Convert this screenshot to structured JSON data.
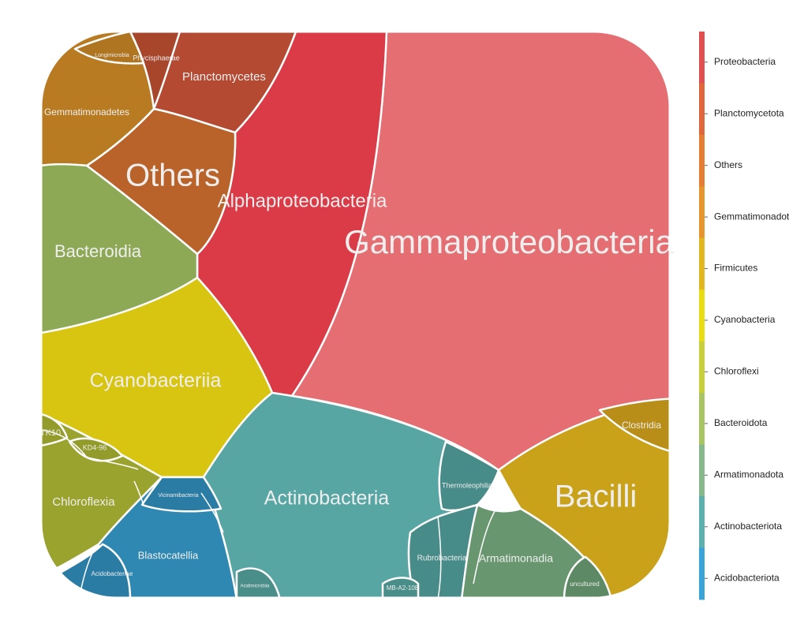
{
  "chart_data": {
    "type": "voronoi treemap",
    "legend": {
      "placement": "right",
      "entries": [
        {
          "label": "Proteobacteria",
          "color": "#e05050"
        },
        {
          "label": "Planctomycetota",
          "color": "#e0663c"
        },
        {
          "label": "Others",
          "color": "#e57e33"
        },
        {
          "label": "Gemmatimonadota",
          "color": "#e6962c"
        },
        {
          "label": "Firmicutes",
          "color": "#e3b81e"
        },
        {
          "label": "Cyanobacteria",
          "color": "#e8dc12"
        },
        {
          "label": "Chloroflexi",
          "color": "#c8cf3a"
        },
        {
          "label": "Bacteroidota",
          "color": "#a9c463"
        },
        {
          "label": "Armatimonadota",
          "color": "#86b88b"
        },
        {
          "label": "Actinobacteriota",
          "color": "#5cb0ad"
        },
        {
          "label": "Acidobacteriota",
          "color": "#3aa3d8"
        }
      ]
    },
    "cells": [
      {
        "label": "Gammaproteobacteria",
        "phylum": "Proteobacteria",
        "color": "#e46e72"
      },
      {
        "label": "Alphaproteobacteria",
        "phylum": "Proteobacteria",
        "color": "#db3b46"
      },
      {
        "label": "Planctomycetes",
        "phylum": "Planctomycetota",
        "color": "#b44a32"
      },
      {
        "label": "Phycisphaerae",
        "phylum": "Planctomycetota",
        "color": "#a8462c"
      },
      {
        "label": "Others",
        "phylum": "Others",
        "color": "#b9632a"
      },
      {
        "label": "Gemmatimonadetes",
        "phylum": "Gemmatimonadota",
        "color": "#b87b22"
      },
      {
        "label": "Longimicrobia",
        "phylum": "Gemmatimonadota",
        "color": "#b07520"
      },
      {
        "label": "Bacilli",
        "phylum": "Firmicutes",
        "color": "#c9a21a"
      },
      {
        "label": "Clostridia",
        "phylum": "Firmicutes",
        "color": "#b88d18"
      },
      {
        "label": "Cyanobacteriia",
        "phylum": "Cyanobacteria",
        "color": "#d8c512"
      },
      {
        "label": "Chloroflexia",
        "phylum": "Chloroflexi",
        "color": "#9aa32d"
      },
      {
        "label": "TK10",
        "phylum": "Chloroflexi",
        "color": "#939c2a"
      },
      {
        "label": "KD4-96",
        "phylum": "Chloroflexi",
        "color": "#939c2a"
      },
      {
        "label": "Bacteroidia",
        "phylum": "Bacteroidota",
        "color": "#8ea956"
      },
      {
        "label": "Armatimonadia",
        "phylum": "Armatimonadota",
        "color": "#68966e"
      },
      {
        "label": "uncultured",
        "phylum": "Armatimonadota",
        "color": "#5d8a64"
      },
      {
        "label": "Actinobacteria",
        "phylum": "Actinobacteriota",
        "color": "#57a6a4"
      },
      {
        "label": "Thermoleophilia",
        "phylum": "Actinobacteriota",
        "color": "#478c88"
      },
      {
        "label": "Rubrobacteria",
        "phylum": "Actinobacteriota",
        "color": "#478c88"
      },
      {
        "label": "MB-A2-108",
        "phylum": "Actinobacteriota",
        "color": "#4a8e8a"
      },
      {
        "label": "Acidimicrobiia",
        "phylum": "Actinobacteriota",
        "color": "#4a8e8a"
      },
      {
        "label": "Blastocatellia",
        "phylum": "Acidobacteriota",
        "color": "#2f88b2"
      },
      {
        "label": "Vicinamibacteria",
        "phylum": "Acidobacteriota",
        "color": "#2a7ca4"
      },
      {
        "label": "Acidobacteriae",
        "phylum": "Acidobacteriota",
        "color": "#2a7ca4"
      }
    ]
  }
}
